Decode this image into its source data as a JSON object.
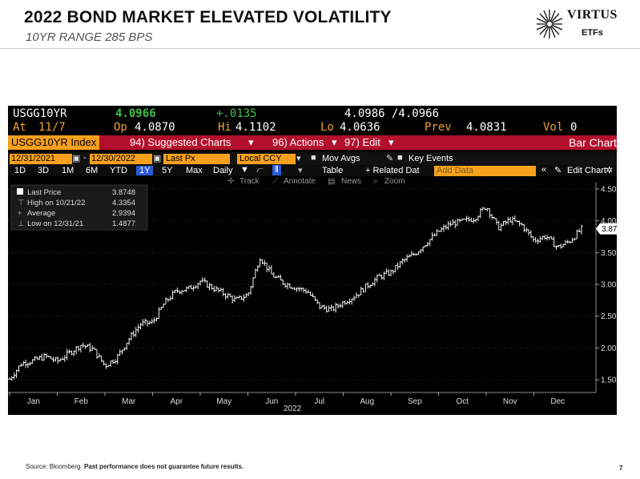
{
  "header": {
    "title": "2022 BOND MARKET ELEVATED VOLATILITY",
    "subtitle": "10YR RANGE 285 BPS"
  },
  "logo": {
    "name": "VIRTUS",
    "sub": "ETFs"
  },
  "quote": {
    "ticker": "USGG10YR",
    "last": "4.0966",
    "change": "+.0135",
    "bid_ask": "4.0986 /4.0966",
    "at_label": "At",
    "date": "11/7",
    "op_label": "Op",
    "open": "4.0870",
    "hi_label": "Hi",
    "high": "4.1102",
    "lo_label": "Lo",
    "low": "4.0636",
    "prev_label": "Prev",
    "prev": "4.0831",
    "vol_label": "Vol",
    "vol": "0"
  },
  "toolbar": {
    "index": "USGG10YR Index",
    "suggested": "94) Suggested Charts",
    "actions": "96) Actions",
    "edit": "97) Edit",
    "bar_chart": "Bar Chart",
    "start_date": "12/31/2021",
    "end_date": "12/30/2022",
    "field": "Last Px",
    "currency": "Local CCY",
    "mov_avgs": "Mov Avgs",
    "key_events": "Key Events",
    "ranges": [
      "1D",
      "3D",
      "1M",
      "6M",
      "YTD",
      "1Y",
      "5Y",
      "Max"
    ],
    "selected_range": "1Y",
    "period": "Daily",
    "table": "Table",
    "related": "+ Related Dat",
    "add_data": "Add Data",
    "edit_chart": "Edit Chart",
    "track": "Track",
    "annotate": "Annotate",
    "news": "News",
    "zoom": "Zoom"
  },
  "legend": {
    "last_label": "Last Price",
    "last_value": "3.8748",
    "high_label": "High on 10/21/22",
    "high_value": "4.3354",
    "avg_label": "Average",
    "avg_value": "2.9394",
    "low_label": "Low on 12/31/21",
    "low_value": "1.4877"
  },
  "chart_data": {
    "type": "line",
    "title": "USGG10YR Index",
    "xlabel": "2022",
    "ylabel": "",
    "months": [
      "Jan",
      "Feb",
      "Mar",
      "Apr",
      "May",
      "Jun",
      "Jul",
      "Aug",
      "Sep",
      "Oct",
      "Nov",
      "Dec"
    ],
    "yticks": [
      "1.5000",
      "2.0000",
      "2.5000",
      "3.0000",
      "3.5000",
      "4.0000",
      "4.5000"
    ],
    "ylim": [
      1.3,
      4.6
    ],
    "last_value_label": "3.8748",
    "x": [
      0,
      0.25,
      0.5,
      0.75,
      1,
      1.25,
      1.5,
      1.75,
      2,
      2.25,
      2.5,
      2.75,
      3,
      3.25,
      3.5,
      3.75,
      4,
      4.25,
      4.5,
      4.75,
      5,
      5.25,
      5.5,
      5.75,
      6,
      6.25,
      6.5,
      6.75,
      7,
      7.25,
      7.5,
      7.75,
      8,
      8.25,
      8.5,
      8.75,
      9,
      9.25,
      9.5,
      9.75,
      10,
      10.25,
      10.5,
      10.75,
      11,
      11.25,
      11.5,
      11.75,
      12
    ],
    "values": [
      1.51,
      1.76,
      1.8,
      1.87,
      1.79,
      1.92,
      2.05,
      1.98,
      1.72,
      1.85,
      2.14,
      2.38,
      2.4,
      2.71,
      2.9,
      2.93,
      3.05,
      2.95,
      2.85,
      2.75,
      2.84,
      3.43,
      3.15,
      3.02,
      2.95,
      2.89,
      2.65,
      2.6,
      2.72,
      2.82,
      2.98,
      3.12,
      3.19,
      3.37,
      3.48,
      3.66,
      3.83,
      3.95,
      3.99,
      4.04,
      4.23,
      3.89,
      4.02,
      3.93,
      3.69,
      3.76,
      3.58,
      3.68,
      3.87
    ]
  }
}
